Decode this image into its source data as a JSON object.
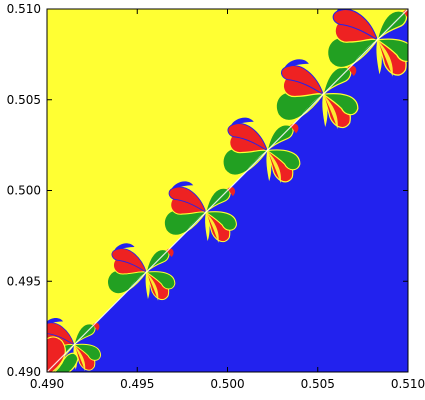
{
  "chart_data": {
    "type": "heatmap",
    "title": "",
    "xlabel": "",
    "ylabel": "",
    "xlim": [
      0.49,
      0.51
    ],
    "ylim": [
      0.49,
      0.51
    ],
    "x_ticks": [
      "0.490",
      "0.495",
      "0.500",
      "0.505",
      "0.510"
    ],
    "y_ticks": [
      "0.490",
      "0.495",
      "0.500",
      "0.505",
      "0.510"
    ],
    "grid": false,
    "legend": "none",
    "colors": {
      "yellow": "#ffff33",
      "blue": "#2222ee",
      "red": "#ee2222",
      "green": "#22a022",
      "white": "#ffffff"
    },
    "regions": [
      {
        "color": "yellow",
        "area": "above diagonal"
      },
      {
        "color": "blue",
        "area": "below diagonal"
      },
      {
        "color": "red",
        "area": "fractal lobes along the diagonal"
      },
      {
        "color": "green",
        "area": "fractal lobes along the diagonal"
      }
    ],
    "lobe_centers_x": [
      0.4915,
      0.4955,
      0.4988,
      0.5022,
      0.5053,
      0.5083
    ],
    "diagonal": {
      "from": [
        0.49,
        0.49
      ],
      "to": [
        0.51,
        0.51
      ]
    }
  }
}
